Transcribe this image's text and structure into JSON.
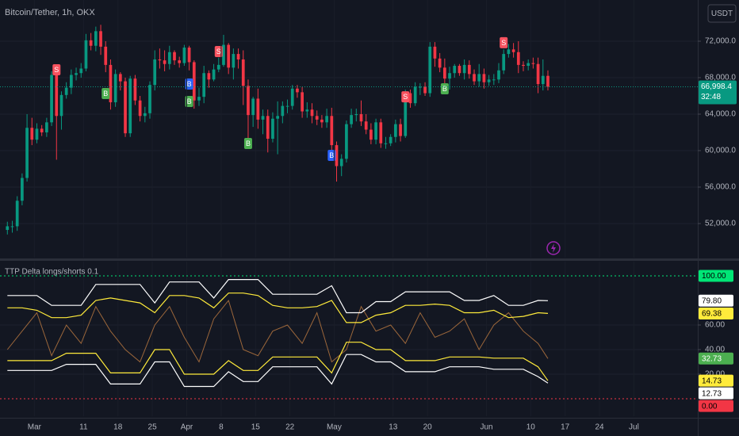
{
  "header": {
    "title": "Bitcoin/Tether, 1h, OKX",
    "currency": "USDT"
  },
  "chart_data": [
    {
      "type": "candlestick",
      "xlim": [
        "02-23",
        "07-14"
      ],
      "ylim": [
        48260,
        76520
      ],
      "yticks": [
        {
          "value": 52000,
          "label": "52,000.0"
        },
        {
          "value": 56000,
          "label": "56,000.0"
        },
        {
          "value": 60000,
          "label": "60,000.0"
        },
        {
          "value": 64000,
          "label": "64,000.0"
        },
        {
          "value": 68000,
          "label": "68,000.0"
        },
        {
          "value": 72000,
          "label": "72,000.0"
        }
      ],
      "grid": true,
      "up_color": "#089981",
      "down_color": "#f23645",
      "last_label": "66,998.4",
      "countdown": "32:48",
      "x": [
        "02-24",
        "02-25",
        "02-26",
        "02-27",
        "02-28",
        "02-29",
        "03-01",
        "03-02",
        "03-03",
        "03-04",
        "03-05",
        "03-06",
        "03-07",
        "03-08",
        "03-09",
        "03-10",
        "03-11",
        "03-12",
        "03-13",
        "03-14",
        "03-15",
        "03-16",
        "03-17",
        "03-18",
        "03-19",
        "03-20",
        "03-21",
        "03-22",
        "03-23",
        "03-24",
        "03-25",
        "03-26",
        "03-27",
        "03-28",
        "03-29",
        "03-30",
        "03-31",
        "04-01",
        "04-02",
        "04-03",
        "04-04",
        "04-05",
        "04-06",
        "04-07",
        "04-08",
        "04-09",
        "04-10",
        "04-11",
        "04-12",
        "04-13",
        "04-14",
        "04-15",
        "04-16",
        "04-17",
        "04-18",
        "04-19",
        "04-20",
        "04-21",
        "04-22",
        "04-23",
        "04-24",
        "04-25",
        "04-26",
        "04-27",
        "04-28",
        "04-29",
        "04-30",
        "05-01",
        "05-02",
        "05-03",
        "05-04",
        "05-05",
        "05-06",
        "05-07",
        "05-08",
        "05-09",
        "05-10",
        "05-11",
        "05-12",
        "05-13",
        "05-14",
        "05-15",
        "05-16",
        "05-17",
        "05-18",
        "05-19",
        "05-20",
        "05-21",
        "05-22",
        "05-23",
        "05-24",
        "05-25",
        "05-26",
        "05-27",
        "05-28",
        "05-29",
        "05-30",
        "05-31",
        "06-01",
        "06-02",
        "06-03",
        "06-04",
        "06-05",
        "06-06",
        "06-07",
        "06-08",
        "06-09",
        "06-10",
        "06-11",
        "06-12",
        "06-13"
      ],
      "open": [
        51300,
        51700,
        51700,
        54500,
        57000,
        62500,
        61200,
        62400,
        62000,
        63100,
        68300,
        63800,
        66100,
        66900,
        68300,
        68500,
        69000,
        72100,
        71500,
        73100,
        71400,
        69400,
        65300,
        68400,
        67600,
        61900,
        67900,
        65500,
        63800,
        64100,
        67200,
        70000,
        69900,
        69500,
        70800,
        69900,
        69600,
        71300,
        69700,
        65500,
        65900,
        68500,
        67800,
        68900,
        69400,
        71600,
        69100,
        70600,
        70000,
        67100,
        63900,
        65700,
        63400,
        63800,
        61300,
        63500,
        63800,
        64900,
        64900,
        66800,
        66400,
        64300,
        64500,
        63800,
        63400,
        63100,
        63800,
        60600,
        58300,
        59100,
        62900,
        63900,
        64000,
        63200,
        62300,
        61200,
        63100,
        60800,
        60800,
        61500,
        62900,
        61600,
        66300,
        65200,
        67000,
        67000,
        66300,
        71400,
        70100,
        69100,
        67900,
        68500,
        69300,
        68500,
        69400,
        68400,
        67600,
        68400,
        67500,
        67800,
        67800,
        68800,
        70600,
        71100,
        70800,
        69400,
        69300,
        69600,
        69500,
        67300,
        68200
      ],
      "high": [
        52200,
        52300,
        55000,
        57500,
        64000,
        63600,
        63000,
        62800,
        63600,
        68700,
        69000,
        66500,
        67500,
        68900,
        69100,
        69600,
        72800,
        72900,
        73600,
        73800,
        72000,
        70000,
        68900,
        68600,
        68000,
        68200,
        68300,
        66000,
        64800,
        67600,
        71000,
        71200,
        71000,
        71500,
        71000,
        70300,
        71600,
        71500,
        69900,
        66900,
        69300,
        68800,
        69500,
        70200,
        72700,
        71800,
        71200,
        71200,
        71000,
        67800,
        65900,
        66800,
        64500,
        64500,
        64200,
        65400,
        65400,
        65600,
        67200,
        67200,
        67000,
        65300,
        65200,
        64400,
        63900,
        64600,
        64700,
        61000,
        59600,
        63300,
        64600,
        64600,
        65500,
        64000,
        63000,
        63500,
        63500,
        61500,
        61800,
        63400,
        63500,
        66700,
        66700,
        67500,
        67400,
        67500,
        71900,
        71900,
        70700,
        70100,
        69200,
        69500,
        69500,
        70000,
        69900,
        68900,
        69500,
        69000,
        68300,
        68400,
        69600,
        71100,
        71700,
        71800,
        72000,
        69800,
        70000,
        70200,
        70200,
        70000,
        68800
      ],
      "low": [
        50800,
        51000,
        51200,
        54000,
        56600,
        60600,
        60800,
        61600,
        61500,
        62700,
        59000,
        62300,
        65700,
        66200,
        67700,
        68000,
        68700,
        71000,
        70900,
        70500,
        68600,
        64500,
        64800,
        66600,
        61500,
        61500,
        65000,
        63200,
        63100,
        63500,
        66600,
        69000,
        68700,
        68900,
        69400,
        69100,
        69300,
        68800,
        64600,
        64900,
        65200,
        66900,
        67600,
        68600,
        69200,
        68400,
        67800,
        69000,
        65000,
        61000,
        62600,
        62400,
        61800,
        59800,
        60900,
        59600,
        63000,
        64100,
        64500,
        65800,
        63600,
        63600,
        63000,
        62800,
        62500,
        62500,
        59600,
        56600,
        57200,
        58700,
        62500,
        63200,
        62700,
        61800,
        60700,
        60700,
        60300,
        60200,
        60500,
        60900,
        61000,
        61400,
        64700,
        64900,
        66100,
        66000,
        65900,
        69200,
        68600,
        66300,
        66700,
        68000,
        68200,
        67800,
        67900,
        67200,
        67000,
        66800,
        67100,
        67200,
        67400,
        68400,
        70200,
        70200,
        68500,
        68700,
        68800,
        69000,
        66300,
        66600,
        66600
      ],
      "close": [
        51700,
        51700,
        54500,
        57000,
        62500,
        61200,
        62400,
        62000,
        63100,
        68300,
        63800,
        66100,
        66900,
        68300,
        68500,
        69000,
        72100,
        71500,
        73100,
        71400,
        69400,
        65300,
        68400,
        67600,
        61900,
        67900,
        65500,
        63800,
        64100,
        67200,
        70000,
        69900,
        69500,
        70800,
        69900,
        69600,
        71300,
        69700,
        65500,
        65900,
        68500,
        67800,
        68900,
        69400,
        71600,
        69100,
        70600,
        70000,
        67100,
        63900,
        65700,
        63400,
        63800,
        61300,
        63500,
        63800,
        64900,
        64900,
        66800,
        66400,
        64300,
        64500,
        63800,
        63400,
        63100,
        63800,
        60600,
        58300,
        59100,
        62900,
        63900,
        64000,
        63200,
        62300,
        61200,
        63100,
        60800,
        60800,
        61500,
        62900,
        61600,
        66300,
        65200,
        67000,
        67000,
        66300,
        71400,
        70100,
        69100,
        67900,
        68500,
        69300,
        68500,
        69400,
        68400,
        67600,
        68400,
        67500,
        67800,
        67800,
        68800,
        70600,
        71100,
        70800,
        69400,
        69300,
        69600,
        69500,
        67300,
        68200,
        66998.4
      ],
      "signals": [
        {
          "x": "03-05",
          "y": 68870,
          "label": "S",
          "color": "#f7525f"
        },
        {
          "x": "03-15",
          "y": 66260,
          "label": "B",
          "color": "#4caf50"
        },
        {
          "x": "04-01",
          "y": 67300,
          "label": "B",
          "color": "#2962ff"
        },
        {
          "x": "04-01",
          "y": 65390,
          "label": "B",
          "color": "#4caf50"
        },
        {
          "x": "04-07",
          "y": 70870,
          "label": "S",
          "color": "#f7525f"
        },
        {
          "x": "04-13",
          "y": 60780,
          "label": "B",
          "color": "#4caf50"
        },
        {
          "x": "04-30",
          "y": 59480,
          "label": "B",
          "color": "#2962ff"
        },
        {
          "x": "05-15",
          "y": 65900,
          "label": "S",
          "color": "#f7525f"
        },
        {
          "x": "05-23",
          "y": 66780,
          "label": "B",
          "color": "#4caf50"
        },
        {
          "x": "06-04",
          "y": 71830,
          "label": "S",
          "color": "#f7525f"
        }
      ]
    },
    {
      "type": "line",
      "title": "TTP Delta longs/shorts 0.1",
      "xlim": [
        "02-23",
        "07-14"
      ],
      "ylim": [
        -14.2,
        111.6
      ],
      "yticks": [
        {
          "value": 20,
          "label": "20.00"
        },
        {
          "value": 40,
          "label": "40.00"
        },
        {
          "value": 60,
          "label": "60.00"
        }
      ],
      "grid": true,
      "hlines": [
        {
          "value": 100,
          "label": "100.00",
          "color": "#00e676"
        },
        {
          "value": 0,
          "label": "0.00",
          "color": "#f23645"
        }
      ],
      "xticks": [
        {
          "value": "03-01",
          "label": "Mar"
        },
        {
          "value": "03-11",
          "label": "11"
        },
        {
          "value": "03-18",
          "label": "18"
        },
        {
          "value": "03-25",
          "label": "25"
        },
        {
          "value": "04-01",
          "label": "Apr"
        },
        {
          "value": "04-08",
          "label": "8"
        },
        {
          "value": "04-15",
          "label": "15"
        },
        {
          "value": "04-22",
          "label": "22"
        },
        {
          "value": "05-01",
          "label": "May"
        },
        {
          "value": "05-13",
          "label": "13"
        },
        {
          "value": "05-20",
          "label": "20"
        },
        {
          "value": "06-01",
          "label": "Jun"
        },
        {
          "value": "06-10",
          "label": "10"
        },
        {
          "value": "06-17",
          "label": "17"
        },
        {
          "value": "06-24",
          "label": "24"
        },
        {
          "value": "07-01",
          "label": "Jul"
        }
      ],
      "x": [
        "02-24",
        "02-27",
        "03-01",
        "03-04",
        "03-07",
        "03-10",
        "03-13",
        "03-16",
        "03-19",
        "03-22",
        "03-25",
        "03-28",
        "03-31",
        "04-03",
        "04-06",
        "04-09",
        "04-12",
        "04-15",
        "04-18",
        "04-21",
        "04-24",
        "04-27",
        "04-30",
        "05-03",
        "05-06",
        "05-09",
        "05-12",
        "05-15",
        "05-18",
        "05-21",
        "05-24",
        "05-27",
        "05-30",
        "06-02",
        "06-05",
        "06-08",
        "06-11",
        "06-13"
      ],
      "series": [
        {
          "color": "#b5763f",
          "tag_color": "#4caf50",
          "last_label": "32.73",
          "values": [
            40,
            55,
            70,
            35,
            60,
            45,
            75,
            55,
            40,
            30,
            60,
            75,
            50,
            30,
            65,
            80,
            40,
            35,
            55,
            60,
            45,
            70,
            30,
            40,
            75,
            55,
            60,
            45,
            70,
            50,
            55,
            65,
            40,
            60,
            70,
            55,
            45,
            32.73
          ]
        },
        {
          "color": "#ffffff",
          "tag_color": "#ffffff",
          "last_label": "79.80",
          "values": [
            84,
            84,
            84,
            76,
            76,
            76,
            93,
            93,
            93,
            93,
            78,
            95,
            95,
            95,
            82,
            97,
            97,
            97,
            85,
            85,
            85,
            85,
            92,
            70,
            70,
            79,
            79,
            87,
            87,
            87,
            87,
            80,
            80,
            84,
            76,
            76,
            80,
            79.8
          ]
        },
        {
          "color": "#ffeb3b",
          "tag_color": "#ffeb3b",
          "last_label": "69.38",
          "values": [
            74,
            74,
            72,
            66,
            66,
            68,
            80,
            82,
            80,
            78,
            70,
            84,
            84,
            82,
            74,
            86,
            86,
            84,
            76,
            74,
            74,
            75,
            80,
            62,
            62,
            68,
            70,
            76,
            76,
            77,
            76,
            70,
            70,
            72,
            66,
            67,
            70,
            69.38
          ]
        },
        {
          "color": "#ffeb3b",
          "tag_color": "#ffeb3b",
          "last_label": "14.73",
          "values": [
            31,
            31,
            31,
            31,
            37,
            37,
            37,
            21,
            21,
            21,
            40,
            40,
            20,
            20,
            20,
            31,
            23,
            23,
            34,
            34,
            34,
            34,
            21,
            46,
            46,
            40,
            40,
            31,
            31,
            31,
            34,
            34,
            34,
            33,
            33,
            33,
            26,
            14.73
          ]
        },
        {
          "color": "#ffffff",
          "tag_color": "#ffffff",
          "last_label": "12.73",
          "values": [
            23,
            23,
            23,
            23,
            28,
            28,
            28,
            12,
            12,
            12,
            30,
            30,
            10,
            10,
            10,
            22,
            14,
            14,
            26,
            26,
            26,
            26,
            12,
            36,
            36,
            30,
            30,
            22,
            22,
            22,
            26,
            26,
            26,
            24,
            24,
            24,
            18,
            12.73
          ]
        }
      ]
    }
  ]
}
